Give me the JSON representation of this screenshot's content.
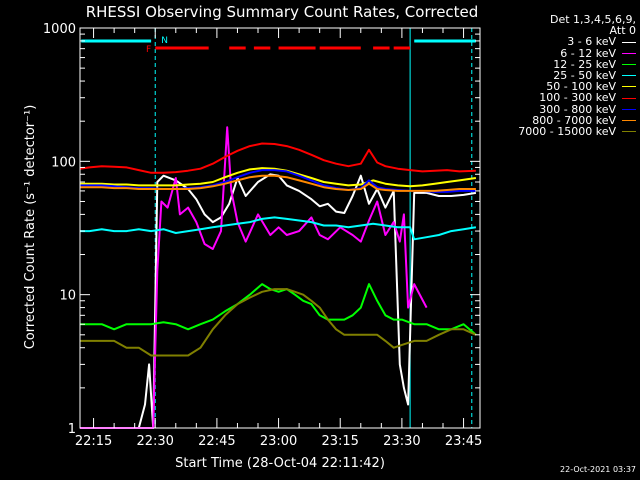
{
  "chart_data": {
    "type": "line",
    "title": "RHESSI Observing Summary Count Rates, Corrected",
    "xlabel": "Start Time (28-Oct-04 22:11:42)",
    "ylabel": "Corrected Count Rate (s⁻¹ detector⁻¹)",
    "x_ticks": [
      "22:15",
      "22:30",
      "22:45",
      "23:00",
      "23:15",
      "23:30",
      "23:45"
    ],
    "x_tick_minutes": [
      15,
      30,
      45,
      60,
      75,
      90,
      105
    ],
    "xlim": [
      11.7,
      109
    ],
    "y_scale": "log",
    "ylim": [
      1,
      1000
    ],
    "y_ticks": [
      1,
      10,
      100,
      1000
    ],
    "y_tick_labels": [
      "1",
      "10",
      "100",
      "1000"
    ],
    "legend_header": [
      "Det 1,3,4,5,6,9,",
      "Att 0"
    ],
    "legend_placement": "right",
    "series": [
      {
        "name": "3 - 6 keV",
        "color": "#ffffff",
        "x": [
          11.7,
          14,
          17,
          20,
          24,
          26,
          27.5,
          28.5,
          29.5,
          30.5,
          32,
          35,
          38,
          40,
          42,
          44,
          46,
          48,
          50,
          52,
          55,
          58,
          60,
          62,
          65,
          68,
          70,
          72,
          74,
          76,
          78,
          80,
          82,
          84,
          86,
          88,
          89.5,
          90.5,
          91.5,
          93,
          96,
          99,
          102,
          105,
          108
        ],
        "y": [
          1,
          1,
          1,
          1,
          1,
          1,
          1.5,
          3,
          1,
          70,
          78,
          72,
          62,
          52,
          40,
          35,
          38,
          48,
          75,
          55,
          70,
          80,
          78,
          66,
          60,
          52,
          46,
          48,
          42,
          41,
          55,
          78,
          48,
          62,
          45,
          60,
          3,
          2,
          1.5,
          58,
          58,
          55,
          55,
          56,
          58
        ]
      },
      {
        "name": "6 - 12 keV",
        "color": "#ff00ff",
        "x": [
          11.7,
          25,
          27.5,
          28,
          29.5,
          30.5,
          31.5,
          33,
          35,
          36,
          38,
          40,
          42,
          44,
          46,
          47.5,
          48.5,
          50,
          52,
          55,
          58,
          60,
          62,
          65,
          68,
          70,
          72,
          75,
          78,
          80,
          82,
          84,
          86,
          88,
          89.5,
          90.5,
          91.5,
          93,
          96,
          99,
          102,
          105,
          108
        ],
        "y": [
          1,
          1,
          1,
          1,
          1,
          15,
          50,
          45,
          75,
          40,
          45,
          35,
          24,
          22,
          30,
          180,
          60,
          35,
          25,
          40,
          28,
          32,
          28,
          30,
          38,
          28,
          26,
          32,
          28,
          25,
          36,
          50,
          28,
          35,
          25,
          40,
          8,
          12,
          8,
          null,
          null,
          null,
          null
        ]
      },
      {
        "name": "12 - 25 keV",
        "color": "#00ff00",
        "x": [
          11.7,
          14,
          17,
          20,
          23,
          26,
          29,
          32,
          35,
          38,
          41,
          44,
          47,
          50,
          53,
          56,
          58,
          60,
          62,
          64,
          66,
          68,
          70,
          72,
          74,
          76,
          78,
          80,
          82,
          84,
          86,
          88,
          90,
          93,
          96,
          99,
          102,
          105,
          108
        ],
        "y": [
          6,
          6,
          6,
          5.5,
          6,
          6,
          6,
          6.2,
          6,
          5.5,
          6,
          6.5,
          7.5,
          8.5,
          10,
          12,
          11,
          10.5,
          11,
          10,
          9,
          8.5,
          7,
          6.5,
          6.5,
          6.5,
          7,
          8,
          12,
          9,
          7,
          6.5,
          6.5,
          6,
          6,
          5.5,
          5.5,
          6,
          5
        ]
      },
      {
        "name": "25 - 50 keV",
        "color": "#00ffff",
        "x": [
          11.7,
          14,
          17,
          20,
          23,
          26,
          29,
          32,
          35,
          38,
          41,
          44,
          47,
          50,
          53,
          56,
          59,
          62,
          65,
          68,
          71,
          74,
          77,
          80,
          83,
          86,
          89,
          92,
          93,
          96,
          99,
          102,
          105,
          108
        ],
        "y": [
          30,
          30,
          31,
          30,
          30,
          31,
          30,
          31,
          29,
          30,
          31,
          32,
          33,
          34,
          35,
          37,
          38,
          37,
          36,
          35,
          33,
          33,
          32,
          33,
          34,
          33,
          32,
          32,
          26,
          27,
          28,
          30,
          31,
          32
        ]
      },
      {
        "name": "50 - 100 keV",
        "color": "#ffff00",
        "x": [
          11.7,
          14,
          17,
          20,
          23,
          26,
          29,
          32,
          35,
          38,
          41,
          44,
          47,
          50,
          53,
          56,
          59,
          62,
          65,
          68,
          71,
          74,
          77,
          80,
          83,
          86,
          89,
          92,
          95,
          98,
          101,
          104,
          108
        ],
        "y": [
          68,
          68,
          68,
          67,
          67,
          66,
          66,
          66,
          66,
          67,
          68,
          70,
          76,
          82,
          87,
          89,
          88,
          85,
          80,
          75,
          70,
          68,
          66,
          67,
          72,
          68,
          66,
          65,
          66,
          68,
          70,
          72,
          75
        ]
      },
      {
        "name": "100 - 300 keV",
        "color": "#ff0000",
        "x": [
          11.7,
          14,
          17,
          20,
          23,
          26,
          29,
          32,
          35,
          38,
          41,
          44,
          47,
          50,
          53,
          56,
          59,
          62,
          65,
          68,
          71,
          74,
          77,
          80,
          82,
          84,
          86,
          89,
          92,
          95,
          98,
          101,
          104,
          108
        ],
        "y": [
          88,
          90,
          92,
          91,
          90,
          86,
          82,
          82,
          83,
          85,
          88,
          96,
          108,
          120,
          130,
          136,
          135,
          130,
          122,
          112,
          102,
          96,
          92,
          96,
          122,
          98,
          92,
          88,
          86,
          84,
          85,
          86,
          84,
          85
        ]
      },
      {
        "name": "300 - 800 keV",
        "color": "#0000ff",
        "x": [
          11.7,
          14,
          17,
          20,
          23,
          26,
          29,
          32,
          35,
          38,
          41,
          44,
          47,
          50,
          53,
          56,
          59,
          62,
          65,
          68,
          71,
          74,
          77,
          80,
          82,
          84,
          86,
          89,
          92,
          95,
          98,
          101,
          104,
          108
        ],
        "y": [
          66,
          66,
          66,
          65,
          64,
          63,
          63,
          62,
          62,
          63,
          64,
          66,
          70,
          76,
          82,
          86,
          86,
          84,
          78,
          72,
          66,
          63,
          61,
          63,
          72,
          64,
          62,
          61,
          60,
          60,
          59,
          59,
          60,
          60
        ]
      },
      {
        "name": "800 - 7000 keV",
        "color": "#ff8800",
        "x": [
          11.7,
          14,
          17,
          20,
          23,
          26,
          29,
          32,
          35,
          38,
          41,
          44,
          47,
          50,
          53,
          56,
          59,
          62,
          65,
          68,
          71,
          74,
          77,
          80,
          82,
          84,
          86,
          89,
          92,
          95,
          98,
          101,
          104,
          108
        ],
        "y": [
          64,
          64,
          64,
          63,
          63,
          62,
          62,
          62,
          62,
          62,
          63,
          65,
          68,
          72,
          76,
          78,
          78,
          76,
          72,
          68,
          64,
          62,
          61,
          62,
          68,
          62,
          61,
          60,
          60,
          60,
          60,
          61,
          62,
          62
        ]
      },
      {
        "name": "7000 - 15000 keV",
        "color": "#808000",
        "x": [
          11.7,
          14,
          17,
          20,
          23,
          26,
          29,
          32,
          35,
          38,
          41,
          44,
          47,
          50,
          53,
          56,
          59,
          62,
          64,
          66,
          68,
          70,
          72,
          74,
          76,
          78,
          80,
          82,
          84,
          86,
          88,
          90,
          93,
          96,
          99,
          102,
          105,
          108
        ],
        "y": [
          4.5,
          4.5,
          4.5,
          4.5,
          4,
          4,
          3.5,
          3.5,
          3.5,
          3.5,
          4,
          5.5,
          7,
          8.5,
          9.5,
          10.5,
          11,
          11,
          10.5,
          10,
          9,
          8,
          6.5,
          5.5,
          5,
          5,
          5,
          5,
          5,
          4.5,
          4,
          4.2,
          4.5,
          4.5,
          5,
          5.5,
          5.5,
          5
        ]
      }
    ],
    "annotations": [
      {
        "text": "F",
        "color": "#ff0000"
      },
      {
        "text": "N",
        "color": "#00ffff"
      }
    ],
    "flare_flag_segments": [
      [
        30,
        43
      ],
      [
        48,
        52
      ],
      [
        54,
        58
      ],
      [
        60,
        69
      ],
      [
        70,
        80
      ],
      [
        83,
        87
      ],
      [
        88,
        92
      ]
    ],
    "night_markers": [
      30,
      91
    ],
    "saa_bars": [
      [
        12,
        29
      ],
      [
        93,
        108
      ]
    ],
    "vertical_dashed": [
      30,
      107
    ],
    "vertical_solid": [
      92
    ],
    "timestamp": "22-Oct-2021 03:37"
  }
}
